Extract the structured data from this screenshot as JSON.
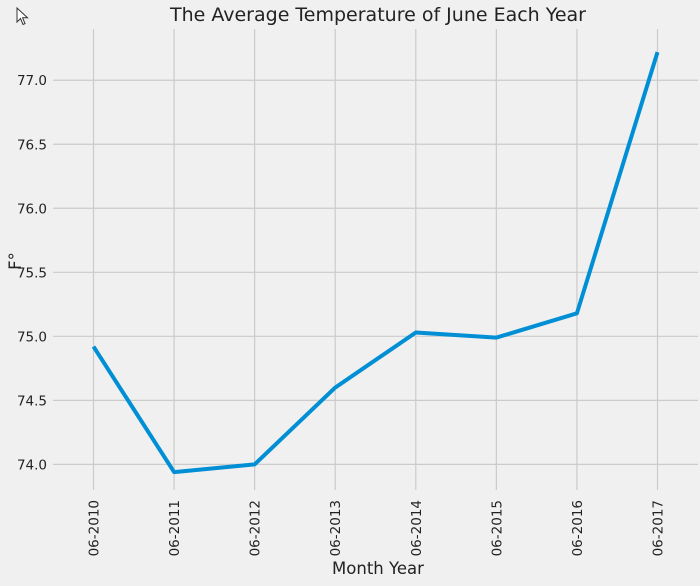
{
  "chart_data": {
    "type": "line",
    "title": "The Average Temperature of June Each Year",
    "xlabel": "Month Year",
    "ylabel": "F°",
    "categories": [
      "06-2010",
      "06-2011",
      "06-2012",
      "06-2013",
      "06-2014",
      "06-2015",
      "06-2016",
      "06-2017"
    ],
    "series": [
      {
        "values": [
          74.92,
          73.94,
          74.0,
          74.6,
          75.03,
          74.99,
          75.18,
          77.22
        ]
      }
    ],
    "yticks": [
      "74.0",
      "74.5",
      "75.0",
      "75.5",
      "76.0",
      "76.5",
      "77.0"
    ],
    "ylim": [
      73.8,
      77.4
    ],
    "grid": true,
    "colors": {
      "line": "#008fd5",
      "background": "#f0f0f0",
      "grid": "#cbcbcb",
      "text": "#222222"
    }
  }
}
